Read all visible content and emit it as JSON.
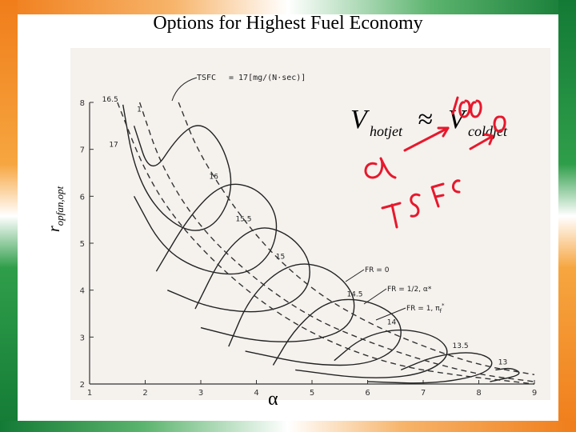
{
  "title": "Options for Highest Fuel Economy",
  "ylabel": "r",
  "ylabel_sub": "opfan,opt",
  "xlabel": "α",
  "tsfc_label": "TSFC",
  "tsfc_units": "= 17[mg/(N·sec)]",
  "legend": {
    "fr0": "FR = 0",
    "fr_half": "FR = 1/2, α*",
    "fr1": "FR = 1, π",
    "fr1_sub": "f",
    "fr1_sup": "*"
  },
  "formula": {
    "v": "V",
    "hot_sub": "hotjet",
    "approx": "≈",
    "cold_sub": "coldjet"
  },
  "chart_data": {
    "type": "line",
    "xlabel": "α",
    "ylabel": "r opfan,opt",
    "xlim": [
      1,
      9
    ],
    "ylim": [
      2,
      8
    ],
    "x_ticks": [
      "1",
      "2",
      "3",
      "4",
      "5",
      "6",
      "7",
      "8",
      "9"
    ],
    "y_ticks": [
      "2",
      "3",
      "4",
      "5",
      "6",
      "7",
      "8"
    ],
    "annotations": [
      "TSFC = 17[mg/(N·sec)]",
      "16.5",
      "17",
      "16",
      "15.5",
      "15",
      "14.5",
      "14",
      "13.5",
      "13",
      "1"
    ],
    "series": [
      {
        "name": "16.5",
        "values": [
          [
            1.6,
            7.95
          ],
          [
            1.8,
            6.6
          ],
          [
            2.2,
            5.7
          ],
          [
            2.8,
            5.2
          ],
          [
            3.3,
            5.4
          ],
          [
            3.6,
            6.2
          ],
          [
            3.4,
            7.1
          ],
          [
            3.0,
            7.6
          ],
          [
            2.6,
            7.3
          ],
          [
            2.1,
            6.4
          ],
          [
            1.8,
            7.5
          ]
        ]
      },
      {
        "name": "16",
        "values": [
          [
            1.8,
            6.0
          ],
          [
            2.3,
            4.9
          ],
          [
            3.0,
            4.4
          ],
          [
            3.8,
            4.3
          ],
          [
            4.3,
            4.8
          ],
          [
            4.4,
            5.6
          ],
          [
            4.0,
            6.2
          ],
          [
            3.4,
            6.3
          ],
          [
            2.8,
            5.6
          ],
          [
            2.2,
            4.4
          ]
        ]
      },
      {
        "name": "15.5",
        "values": [
          [
            2.4,
            4.0
          ],
          [
            3.2,
            3.6
          ],
          [
            4.2,
            3.5
          ],
          [
            4.9,
            3.9
          ],
          [
            5.0,
            4.6
          ],
          [
            4.6,
            5.2
          ],
          [
            4.0,
            5.4
          ],
          [
            3.4,
            4.8
          ],
          [
            2.9,
            3.6
          ]
        ]
      },
      {
        "name": "15",
        "values": [
          [
            3.0,
            3.2
          ],
          [
            4.0,
            2.9
          ],
          [
            5.0,
            2.9
          ],
          [
            5.7,
            3.2
          ],
          [
            5.8,
            3.9
          ],
          [
            5.3,
            4.5
          ],
          [
            4.6,
            4.6
          ],
          [
            3.9,
            3.9
          ],
          [
            3.5,
            2.8
          ]
        ]
      },
      {
        "name": "14.5",
        "values": [
          [
            3.8,
            2.7
          ],
          [
            5.0,
            2.4
          ],
          [
            6.0,
            2.4
          ],
          [
            6.6,
            2.8
          ],
          [
            6.6,
            3.4
          ],
          [
            6.0,
            3.8
          ],
          [
            5.3,
            3.8
          ],
          [
            4.7,
            3.2
          ],
          [
            4.3,
            2.4
          ]
        ]
      },
      {
        "name": "14",
        "values": [
          [
            4.7,
            2.3
          ],
          [
            6.0,
            2.1
          ],
          [
            7.0,
            2.2
          ],
          [
            7.5,
            2.6
          ],
          [
            7.3,
            3.0
          ],
          [
            6.6,
            3.2
          ],
          [
            5.9,
            3.0
          ],
          [
            5.4,
            2.5
          ]
        ]
      },
      {
        "name": "13.5",
        "values": [
          [
            6.0,
            2.05
          ],
          [
            7.2,
            2.0
          ],
          [
            8.1,
            2.2
          ],
          [
            8.3,
            2.5
          ],
          [
            7.9,
            2.7
          ],
          [
            7.2,
            2.6
          ],
          [
            6.6,
            2.3
          ]
        ]
      },
      {
        "name": "13",
        "values": [
          [
            8.2,
            2.05
          ],
          [
            8.8,
            2.2
          ],
          [
            8.6,
            2.35
          ],
          [
            8.3,
            2.3
          ]
        ]
      }
    ],
    "reference_lines": [
      {
        "name": "FR = 0",
        "values": [
          [
            2.6,
            8.0
          ],
          [
            3.0,
            6.8
          ],
          [
            4.0,
            5.1
          ],
          [
            5.0,
            4.0
          ],
          [
            6.0,
            3.3
          ],
          [
            7.0,
            2.8
          ],
          [
            8.0,
            2.4
          ],
          [
            9.0,
            2.2
          ]
        ]
      },
      {
        "name": "FR = 1/2, α*",
        "values": [
          [
            1.9,
            8.0
          ],
          [
            2.3,
            6.6
          ],
          [
            3.0,
            5.3
          ],
          [
            4.0,
            4.2
          ],
          [
            5.0,
            3.4
          ],
          [
            6.0,
            2.9
          ],
          [
            7.0,
            2.5
          ],
          [
            8.0,
            2.2
          ],
          [
            9.0,
            2.05
          ]
        ]
      },
      {
        "name": "FR = 1, πf*",
        "values": [
          [
            1.5,
            8.0
          ],
          [
            2.0,
            6.5
          ],
          [
            2.6,
            5.4
          ],
          [
            3.5,
            4.3
          ],
          [
            4.5,
            3.4
          ],
          [
            5.5,
            2.8
          ],
          [
            6.5,
            2.4
          ],
          [
            7.5,
            2.2
          ],
          [
            9.0,
            2.0
          ]
        ]
      }
    ],
    "grid": false
  }
}
